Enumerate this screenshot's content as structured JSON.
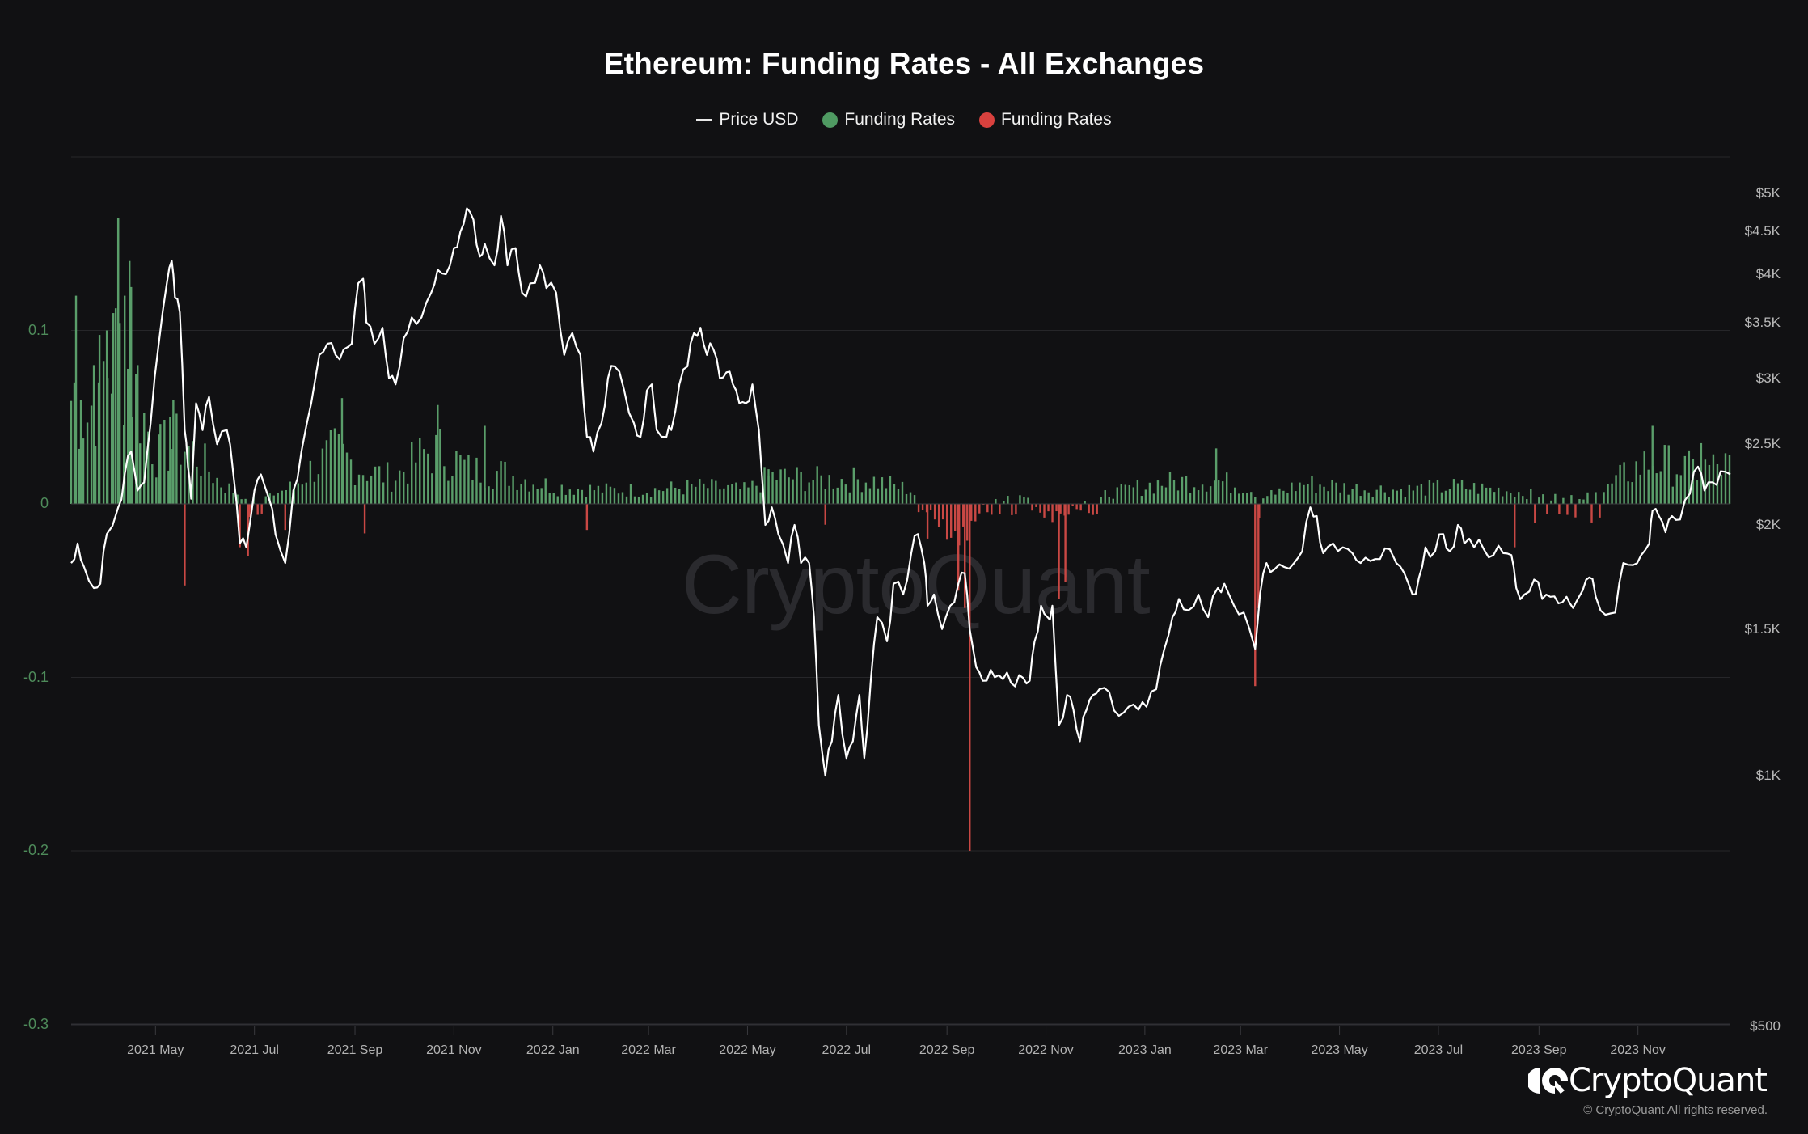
{
  "title": "Ethereum: Funding Rates - All Exchanges",
  "legend": [
    {
      "label": "Price USD",
      "marker": "line",
      "color": "#e8e8e8"
    },
    {
      "label": "Funding Rates",
      "marker": "dot",
      "color": "#4f9a62"
    },
    {
      "label": "Funding Rates",
      "marker": "dot",
      "color": "#d9413e"
    }
  ],
  "watermark": "CryptoQuant",
  "brand": {
    "name": "CryptoQuant",
    "copyright": "© CryptoQuant All rights reserved."
  },
  "colors": {
    "background": "#111113",
    "positive": "#5a9e6a",
    "negative": "#c94844",
    "price": "#ffffff",
    "grid": "#262629"
  },
  "chart_data": {
    "type": "bar+line",
    "title": "Ethereum: Funding Rates - All Exchanges",
    "xlabel": "",
    "ylabel_left": "Funding Rates",
    "ylabel_right": "Price USD (log)",
    "left_axis": {
      "ticks": [
        "0.1",
        "0",
        "-0.1",
        "-0.2",
        "-0.3"
      ],
      "values": [
        0.1,
        0,
        -0.1,
        -0.2,
        -0.3
      ],
      "range": [
        -0.3,
        0.2
      ]
    },
    "right_axis": {
      "ticks": [
        "$5K",
        "$4.5K",
        "$4K",
        "$3.5K",
        "$3K",
        "$2.5K",
        "$2K",
        "$1.5K",
        "$1K",
        "$500"
      ],
      "values": [
        5000,
        4500,
        4000,
        3500,
        3000,
        2500,
        2000,
        1500,
        1000,
        500
      ],
      "scale": "log"
    },
    "x_ticks": [
      "2021 May",
      "2021 Jul",
      "2021 Sep",
      "2021 Nov",
      "2022 Jan",
      "2022 Mar",
      "2022 May",
      "2022 Jul",
      "2022 Sep",
      "2022 Nov",
      "2023 Jan",
      "2023 Mar",
      "2023 May",
      "2023 Jul",
      "2023 Sep",
      "2023 Nov"
    ],
    "x_range": [
      "2021-03-10",
      "2023-12-28"
    ],
    "grid": true,
    "legend_position": "top",
    "price_series": {
      "name": "Price USD",
      "points": [
        [
          "2021-03-10",
          1800
        ],
        [
          "2021-03-14",
          1900
        ],
        [
          "2021-03-18",
          1780
        ],
        [
          "2021-03-24",
          1680
        ],
        [
          "2021-03-28",
          1700
        ],
        [
          "2021-04-01",
          1950
        ],
        [
          "2021-04-08",
          2100
        ],
        [
          "2021-04-12",
          2300
        ],
        [
          "2021-04-16",
          2450
        ],
        [
          "2021-04-20",
          2200
        ],
        [
          "2021-04-24",
          2250
        ],
        [
          "2021-04-28",
          2650
        ],
        [
          "2021-05-03",
          3300
        ],
        [
          "2021-05-08",
          3900
        ],
        [
          "2021-05-11",
          4150
        ],
        [
          "2021-05-13",
          3750
        ],
        [
          "2021-05-16",
          3600
        ],
        [
          "2021-05-19",
          2600
        ],
        [
          "2021-05-21",
          2350
        ],
        [
          "2021-05-23",
          2150
        ],
        [
          "2021-05-26",
          2800
        ],
        [
          "2021-05-30",
          2600
        ],
        [
          "2021-06-03",
          2850
        ],
        [
          "2021-06-08",
          2500
        ],
        [
          "2021-06-14",
          2600
        ],
        [
          "2021-06-18",
          2300
        ],
        [
          "2021-06-22",
          1900
        ],
        [
          "2021-06-26",
          1880
        ],
        [
          "2021-07-01",
          2200
        ],
        [
          "2021-07-05",
          2300
        ],
        [
          "2021-07-10",
          2150
        ],
        [
          "2021-07-14",
          1950
        ],
        [
          "2021-07-20",
          1800
        ],
        [
          "2021-07-25",
          2200
        ],
        [
          "2021-07-30",
          2450
        ],
        [
          "2021-08-05",
          2800
        ],
        [
          "2021-08-10",
          3200
        ],
        [
          "2021-08-15",
          3300
        ],
        [
          "2021-08-20",
          3200
        ],
        [
          "2021-08-25",
          3250
        ],
        [
          "2021-08-30",
          3300
        ],
        [
          "2021-09-03",
          3900
        ],
        [
          "2021-09-06",
          3950
        ],
        [
          "2021-09-08",
          3500
        ],
        [
          "2021-09-13",
          3300
        ],
        [
          "2021-09-18",
          3450
        ],
        [
          "2021-09-22",
          3000
        ],
        [
          "2021-09-26",
          2950
        ],
        [
          "2021-10-01",
          3350
        ],
        [
          "2021-10-06",
          3550
        ],
        [
          "2021-10-12",
          3550
        ],
        [
          "2021-10-18",
          3800
        ],
        [
          "2021-10-22",
          4050
        ],
        [
          "2021-10-27",
          4000
        ],
        [
          "2021-11-01",
          4300
        ],
        [
          "2021-11-05",
          4500
        ],
        [
          "2021-11-09",
          4800
        ],
        [
          "2021-11-13",
          4650
        ],
        [
          "2021-11-17",
          4200
        ],
        [
          "2021-11-20",
          4350
        ],
        [
          "2021-11-26",
          4100
        ],
        [
          "2021-11-30",
          4700
        ],
        [
          "2021-12-04",
          4100
        ],
        [
          "2021-12-09",
          4300
        ],
        [
          "2021-12-13",
          3800
        ],
        [
          "2021-12-18",
          3900
        ],
        [
          "2021-12-24",
          4100
        ],
        [
          "2021-12-28",
          3850
        ],
        [
          "2022-01-03",
          3800
        ],
        [
          "2022-01-08",
          3200
        ],
        [
          "2022-01-13",
          3400
        ],
        [
          "2022-01-18",
          3200
        ],
        [
          "2022-01-22",
          2550
        ],
        [
          "2022-01-26",
          2450
        ],
        [
          "2022-01-31",
          2650
        ],
        [
          "2022-02-04",
          3000
        ],
        [
          "2022-02-08",
          3100
        ],
        [
          "2022-02-14",
          2900
        ],
        [
          "2022-02-20",
          2650
        ],
        [
          "2022-02-24",
          2550
        ],
        [
          "2022-02-28",
          2900
        ],
        [
          "2022-03-03",
          2950
        ],
        [
          "2022-03-06",
          2600
        ],
        [
          "2022-03-12",
          2550
        ],
        [
          "2022-03-15",
          2600
        ],
        [
          "2022-03-20",
          2950
        ],
        [
          "2022-03-25",
          3100
        ],
        [
          "2022-03-29",
          3400
        ],
        [
          "2022-04-02",
          3450
        ],
        [
          "2022-04-06",
          3200
        ],
        [
          "2022-04-10",
          3250
        ],
        [
          "2022-04-14",
          3000
        ],
        [
          "2022-04-18",
          3050
        ],
        [
          "2022-04-22",
          2950
        ],
        [
          "2022-04-26",
          2800
        ],
        [
          "2022-04-30",
          2800
        ],
        [
          "2022-05-04",
          2950
        ],
        [
          "2022-05-08",
          2600
        ],
        [
          "2022-05-12",
          2000
        ],
        [
          "2022-05-16",
          2100
        ],
        [
          "2022-05-20",
          1950
        ],
        [
          "2022-05-26",
          1800
        ],
        [
          "2022-05-30",
          2000
        ],
        [
          "2022-06-03",
          1800
        ],
        [
          "2022-06-08",
          1800
        ],
        [
          "2022-06-11",
          1550
        ],
        [
          "2022-06-14",
          1150
        ],
        [
          "2022-06-18",
          1000
        ],
        [
          "2022-06-22",
          1100
        ],
        [
          "2022-06-26",
          1250
        ],
        [
          "2022-07-01",
          1050
        ],
        [
          "2022-07-05",
          1100
        ],
        [
          "2022-07-09",
          1250
        ],
        [
          "2022-07-12",
          1050
        ],
        [
          "2022-07-16",
          1300
        ],
        [
          "2022-07-20",
          1550
        ],
        [
          "2022-07-26",
          1450
        ],
        [
          "2022-07-30",
          1700
        ],
        [
          "2022-08-05",
          1650
        ],
        [
          "2022-08-10",
          1850
        ],
        [
          "2022-08-14",
          1950
        ],
        [
          "2022-08-18",
          1800
        ],
        [
          "2022-08-20",
          1600
        ],
        [
          "2022-08-24",
          1650
        ],
        [
          "2022-08-29",
          1500
        ],
        [
          "2022-09-03",
          1600
        ],
        [
          "2022-09-08",
          1700
        ],
        [
          "2022-09-12",
          1750
        ],
        [
          "2022-09-15",
          1500
        ],
        [
          "2022-09-19",
          1350
        ],
        [
          "2022-09-23",
          1300
        ],
        [
          "2022-09-28",
          1340
        ],
        [
          "2022-10-03",
          1320
        ],
        [
          "2022-10-08",
          1330
        ],
        [
          "2022-10-13",
          1280
        ],
        [
          "2022-10-18",
          1310
        ],
        [
          "2022-10-22",
          1300
        ],
        [
          "2022-10-25",
          1450
        ],
        [
          "2022-10-29",
          1600
        ],
        [
          "2022-11-02",
          1550
        ],
        [
          "2022-11-05",
          1600
        ],
        [
          "2022-11-09",
          1150
        ],
        [
          "2022-11-14",
          1250
        ],
        [
          "2022-11-18",
          1200
        ],
        [
          "2022-11-22",
          1100
        ],
        [
          "2022-11-26",
          1200
        ],
        [
          "2022-11-30",
          1250
        ],
        [
          "2022-12-04",
          1270
        ],
        [
          "2022-12-10",
          1260
        ],
        [
          "2022-12-16",
          1180
        ],
        [
          "2022-12-22",
          1210
        ],
        [
          "2022-12-28",
          1200
        ],
        [
          "2023-01-02",
          1210
        ],
        [
          "2023-01-08",
          1270
        ],
        [
          "2023-01-13",
          1420
        ],
        [
          "2023-01-18",
          1550
        ],
        [
          "2023-01-22",
          1630
        ],
        [
          "2023-01-28",
          1580
        ],
        [
          "2023-02-03",
          1650
        ],
        [
          "2023-02-09",
          1550
        ],
        [
          "2023-02-15",
          1680
        ],
        [
          "2023-02-19",
          1700
        ],
        [
          "2023-02-25",
          1600
        ],
        [
          "2023-03-03",
          1570
        ],
        [
          "2023-03-10",
          1420
        ],
        [
          "2023-03-13",
          1650
        ],
        [
          "2023-03-17",
          1800
        ],
        [
          "2023-03-22",
          1770
        ],
        [
          "2023-03-28",
          1780
        ],
        [
          "2023-04-03",
          1800
        ],
        [
          "2023-04-08",
          1860
        ],
        [
          "2023-04-13",
          2100
        ],
        [
          "2023-04-17",
          2050
        ],
        [
          "2023-04-21",
          1850
        ],
        [
          "2023-04-27",
          1900
        ],
        [
          "2023-05-03",
          1880
        ],
        [
          "2023-05-09",
          1850
        ],
        [
          "2023-05-14",
          1800
        ],
        [
          "2023-05-20",
          1810
        ],
        [
          "2023-05-26",
          1820
        ],
        [
          "2023-06-01",
          1870
        ],
        [
          "2023-06-05",
          1800
        ],
        [
          "2023-06-10",
          1750
        ],
        [
          "2023-06-15",
          1650
        ],
        [
          "2023-06-19",
          1730
        ],
        [
          "2023-06-23",
          1880
        ],
        [
          "2023-06-29",
          1860
        ],
        [
          "2023-07-04",
          1950
        ],
        [
          "2023-07-08",
          1860
        ],
        [
          "2023-07-13",
          2000
        ],
        [
          "2023-07-17",
          1900
        ],
        [
          "2023-07-23",
          1880
        ],
        [
          "2023-07-29",
          1870
        ],
        [
          "2023-08-04",
          1840
        ],
        [
          "2023-08-10",
          1850
        ],
        [
          "2023-08-15",
          1840
        ],
        [
          "2023-08-18",
          1680
        ],
        [
          "2023-08-23",
          1650
        ],
        [
          "2023-08-29",
          1720
        ],
        [
          "2023-09-03",
          1630
        ],
        [
          "2023-09-08",
          1640
        ],
        [
          "2023-09-13",
          1610
        ],
        [
          "2023-09-18",
          1640
        ],
        [
          "2023-09-22",
          1590
        ],
        [
          "2023-09-28",
          1670
        ],
        [
          "2023-10-02",
          1730
        ],
        [
          "2023-10-06",
          1640
        ],
        [
          "2023-10-12",
          1560
        ],
        [
          "2023-10-18",
          1570
        ],
        [
          "2023-10-23",
          1800
        ],
        [
          "2023-10-29",
          1790
        ],
        [
          "2023-11-03",
          1840
        ],
        [
          "2023-11-08",
          1900
        ],
        [
          "2023-11-10",
          2080
        ],
        [
          "2023-11-14",
          2050
        ],
        [
          "2023-11-18",
          1960
        ],
        [
          "2023-11-22",
          2050
        ],
        [
          "2023-11-27",
          2030
        ],
        [
          "2023-12-03",
          2180
        ],
        [
          "2023-12-08",
          2350
        ],
        [
          "2023-12-12",
          2200
        ],
        [
          "2023-12-17",
          2250
        ],
        [
          "2023-12-22",
          2320
        ],
        [
          "2023-12-28",
          2300
        ]
      ]
    },
    "funding_series": {
      "name": "Funding Rates",
      "note": "bar values in %, one bar every ~2 days; positive shown green, negative shown red",
      "segments": [
        {
          "start": "2021-03-10",
          "end": "2021-04-10",
          "base": 0.045,
          "peaks": [
            [
              "2021-03-12",
              0.07
            ],
            [
              "2021-03-13",
              0.12
            ],
            [
              "2021-03-16",
              0.06
            ],
            [
              "2021-03-24",
              0.08
            ],
            [
              "2021-03-27",
              0.07
            ],
            [
              "2021-04-01",
              0.1
            ],
            [
              "2021-04-05",
              0.11
            ],
            [
              "2021-04-08",
              0.165
            ]
          ]
        },
        {
          "start": "2021-04-10",
          "end": "2021-05-20",
          "base": 0.03,
          "peaks": [
            [
              "2021-04-12",
              0.12
            ],
            [
              "2021-04-15",
              0.14
            ],
            [
              "2021-04-16",
              0.125
            ],
            [
              "2021-04-20",
              0.08
            ],
            [
              "2021-05-03",
              0.04
            ],
            [
              "2021-05-10",
              0.05
            ],
            [
              "2021-05-12",
              0.06
            ]
          ]
        }
      ],
      "notable_negative": [
        {
          "date": "2021-05-19",
          "value": -0.047
        },
        {
          "date": "2021-06-22",
          "value": -0.025
        },
        {
          "date": "2021-06-27",
          "value": -0.03
        },
        {
          "date": "2021-07-20",
          "value": -0.015
        },
        {
          "date": "2021-09-07",
          "value": -0.017
        },
        {
          "date": "2022-01-22",
          "value": -0.015
        },
        {
          "date": "2022-06-18",
          "value": -0.012
        },
        {
          "date": "2022-08-20",
          "value": -0.02
        },
        {
          "date": "2022-09-15",
          "value": -0.2
        },
        {
          "date": "2022-09-12",
          "value": -0.06
        },
        {
          "date": "2022-09-08",
          "value": -0.05
        },
        {
          "date": "2022-11-09",
          "value": -0.055
        },
        {
          "date": "2022-11-13",
          "value": -0.045
        },
        {
          "date": "2023-03-10",
          "value": -0.105
        },
        {
          "date": "2023-03-12",
          "value": -0.06
        },
        {
          "date": "2023-08-17",
          "value": -0.025
        }
      ],
      "notable_positive": [
        {
          "date": "2021-04-08",
          "value": 0.165
        },
        {
          "date": "2021-08-24",
          "value": 0.061
        },
        {
          "date": "2021-10-22",
          "value": 0.057
        },
        {
          "date": "2021-11-20",
          "value": 0.045
        },
        {
          "date": "2022-05-14",
          "value": 0.02
        },
        {
          "date": "2023-02-14",
          "value": 0.032
        },
        {
          "date": "2023-11-10",
          "value": 0.045
        },
        {
          "date": "2023-12-10",
          "value": 0.035
        }
      ]
    }
  }
}
